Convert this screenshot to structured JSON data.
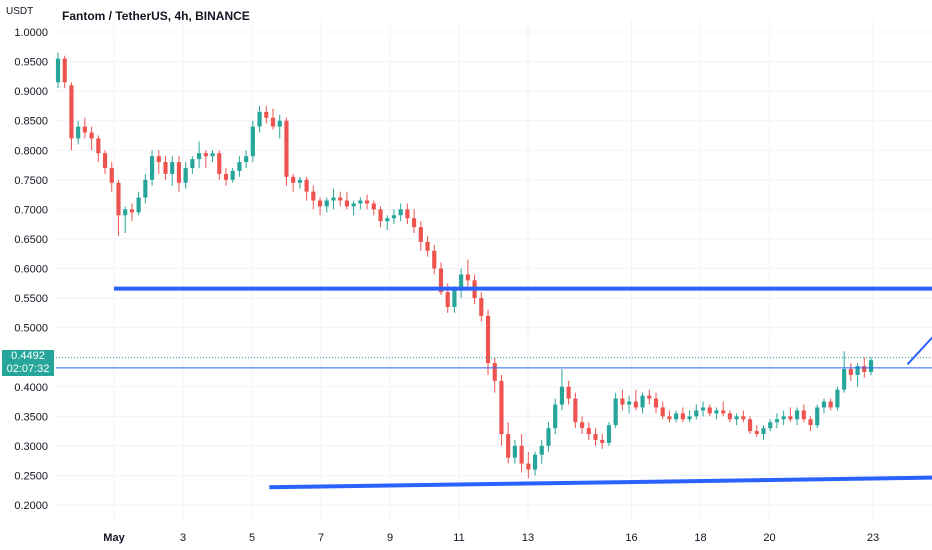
{
  "header": {
    "title": "Fantom / TetherUS, 4h, BINANCE",
    "unit": "USDT"
  },
  "colors": {
    "up": "#26a69a",
    "down": "#ef5350",
    "line": "#2962ff",
    "grid": "#f0f3fa",
    "axis_text": "#131722"
  },
  "price_badge": {
    "price": "0.4492",
    "timer": "02:07:32"
  },
  "chart_data": {
    "type": "candlestick",
    "ylim": [
      0.18,
      1.02
    ],
    "y_ticks": [
      "1.0000",
      "0.9500",
      "0.9000",
      "0.8500",
      "0.8000",
      "0.7500",
      "0.7000",
      "0.6500",
      "0.6000",
      "0.5500",
      "0.5000",
      "0.4500",
      "0.4000",
      "0.3500",
      "0.3000",
      "0.2500",
      "0.2000"
    ],
    "x_ticks": [
      {
        "label": "May",
        "day": 1,
        "bold": true
      },
      {
        "label": "3",
        "day": 3
      },
      {
        "label": "5",
        "day": 5
      },
      {
        "label": "7",
        "day": 7
      },
      {
        "label": "9",
        "day": 9
      },
      {
        "label": "11",
        "day": 11
      },
      {
        "label": "13",
        "day": 13
      },
      {
        "label": "16",
        "day": 16
      },
      {
        "label": "18",
        "day": 18
      },
      {
        "label": "20",
        "day": 20
      },
      {
        "label": "23",
        "day": 23
      }
    ],
    "candles": [
      [
        0.915,
        0.965,
        0.905,
        0.955
      ],
      [
        0.955,
        0.96,
        0.905,
        0.915
      ],
      [
        0.91,
        0.915,
        0.8,
        0.82
      ],
      [
        0.82,
        0.85,
        0.81,
        0.84
      ],
      [
        0.84,
        0.855,
        0.82,
        0.83
      ],
      [
        0.83,
        0.84,
        0.8,
        0.82
      ],
      [
        0.82,
        0.825,
        0.78,
        0.795
      ],
      [
        0.795,
        0.8,
        0.76,
        0.77
      ],
      [
        0.77,
        0.78,
        0.73,
        0.745
      ],
      [
        0.745,
        0.75,
        0.655,
        0.69
      ],
      [
        0.69,
        0.705,
        0.66,
        0.7
      ],
      [
        0.7,
        0.71,
        0.68,
        0.695
      ],
      [
        0.695,
        0.73,
        0.69,
        0.72
      ],
      [
        0.72,
        0.76,
        0.71,
        0.75
      ],
      [
        0.75,
        0.8,
        0.74,
        0.79
      ],
      [
        0.79,
        0.8,
        0.76,
        0.78
      ],
      [
        0.78,
        0.79,
        0.75,
        0.76
      ],
      [
        0.76,
        0.79,
        0.74,
        0.78
      ],
      [
        0.78,
        0.79,
        0.73,
        0.745
      ],
      [
        0.745,
        0.78,
        0.735,
        0.77
      ],
      [
        0.77,
        0.79,
        0.76,
        0.785
      ],
      [
        0.785,
        0.815,
        0.77,
        0.795
      ],
      [
        0.795,
        0.8,
        0.77,
        0.79
      ],
      [
        0.79,
        0.8,
        0.78,
        0.795
      ],
      [
        0.795,
        0.8,
        0.75,
        0.76
      ],
      [
        0.76,
        0.77,
        0.74,
        0.75
      ],
      [
        0.75,
        0.77,
        0.745,
        0.765
      ],
      [
        0.765,
        0.79,
        0.755,
        0.78
      ],
      [
        0.78,
        0.8,
        0.77,
        0.79
      ],
      [
        0.79,
        0.85,
        0.78,
        0.84
      ],
      [
        0.84,
        0.875,
        0.83,
        0.865
      ],
      [
        0.865,
        0.875,
        0.845,
        0.855
      ],
      [
        0.855,
        0.87,
        0.835,
        0.84
      ],
      [
        0.84,
        0.86,
        0.82,
        0.85
      ],
      [
        0.85,
        0.855,
        0.74,
        0.755
      ],
      [
        0.755,
        0.76,
        0.73,
        0.745
      ],
      [
        0.745,
        0.755,
        0.735,
        0.75
      ],
      [
        0.75,
        0.755,
        0.715,
        0.73
      ],
      [
        0.73,
        0.74,
        0.7,
        0.715
      ],
      [
        0.715,
        0.72,
        0.69,
        0.705
      ],
      [
        0.705,
        0.72,
        0.695,
        0.715
      ],
      [
        0.715,
        0.735,
        0.7,
        0.72
      ],
      [
        0.72,
        0.73,
        0.705,
        0.715
      ],
      [
        0.715,
        0.73,
        0.7,
        0.705
      ],
      [
        0.705,
        0.715,
        0.69,
        0.71
      ],
      [
        0.71,
        0.72,
        0.7,
        0.715
      ],
      [
        0.715,
        0.725,
        0.7,
        0.71
      ],
      [
        0.71,
        0.715,
        0.69,
        0.7
      ],
      [
        0.7,
        0.705,
        0.67,
        0.68
      ],
      [
        0.68,
        0.69,
        0.665,
        0.685
      ],
      [
        0.685,
        0.7,
        0.675,
        0.69
      ],
      [
        0.69,
        0.71,
        0.68,
        0.7
      ],
      [
        0.7,
        0.71,
        0.675,
        0.685
      ],
      [
        0.685,
        0.7,
        0.66,
        0.67
      ],
      [
        0.67,
        0.68,
        0.63,
        0.645
      ],
      [
        0.645,
        0.655,
        0.62,
        0.63
      ],
      [
        0.63,
        0.64,
        0.59,
        0.6
      ],
      [
        0.6,
        0.61,
        0.555,
        0.56
      ],
      [
        0.56,
        0.575,
        0.525,
        0.535
      ],
      [
        0.535,
        0.57,
        0.525,
        0.565
      ],
      [
        0.565,
        0.6,
        0.55,
        0.59
      ],
      [
        0.59,
        0.615,
        0.57,
        0.58
      ],
      [
        0.58,
        0.59,
        0.54,
        0.55
      ],
      [
        0.55,
        0.56,
        0.51,
        0.52
      ],
      [
        0.52,
        0.53,
        0.42,
        0.44
      ],
      [
        0.44,
        0.45,
        0.39,
        0.41
      ],
      [
        0.41,
        0.42,
        0.3,
        0.32
      ],
      [
        0.32,
        0.34,
        0.27,
        0.28
      ],
      [
        0.28,
        0.31,
        0.27,
        0.3
      ],
      [
        0.3,
        0.32,
        0.255,
        0.27
      ],
      [
        0.27,
        0.29,
        0.245,
        0.26
      ],
      [
        0.26,
        0.29,
        0.25,
        0.285
      ],
      [
        0.285,
        0.31,
        0.27,
        0.3
      ],
      [
        0.3,
        0.34,
        0.29,
        0.33
      ],
      [
        0.33,
        0.38,
        0.32,
        0.37
      ],
      [
        0.37,
        0.43,
        0.36,
        0.4
      ],
      [
        0.4,
        0.41,
        0.37,
        0.38
      ],
      [
        0.38,
        0.39,
        0.33,
        0.34
      ],
      [
        0.34,
        0.35,
        0.32,
        0.33
      ],
      [
        0.33,
        0.34,
        0.31,
        0.32
      ],
      [
        0.32,
        0.33,
        0.3,
        0.31
      ],
      [
        0.31,
        0.32,
        0.295,
        0.305
      ],
      [
        0.305,
        0.34,
        0.3,
        0.335
      ],
      [
        0.335,
        0.39,
        0.33,
        0.38
      ],
      [
        0.38,
        0.395,
        0.36,
        0.37
      ],
      [
        0.37,
        0.385,
        0.355,
        0.375
      ],
      [
        0.375,
        0.395,
        0.36,
        0.365
      ],
      [
        0.365,
        0.39,
        0.355,
        0.385
      ],
      [
        0.385,
        0.395,
        0.37,
        0.38
      ],
      [
        0.38,
        0.39,
        0.355,
        0.365
      ],
      [
        0.365,
        0.375,
        0.345,
        0.35
      ],
      [
        0.35,
        0.36,
        0.34,
        0.345
      ],
      [
        0.345,
        0.36,
        0.34,
        0.355
      ],
      [
        0.355,
        0.365,
        0.34,
        0.345
      ],
      [
        0.345,
        0.36,
        0.34,
        0.35
      ],
      [
        0.35,
        0.37,
        0.345,
        0.36
      ],
      [
        0.36,
        0.375,
        0.35,
        0.365
      ],
      [
        0.365,
        0.37,
        0.35,
        0.355
      ],
      [
        0.355,
        0.365,
        0.345,
        0.36
      ],
      [
        0.36,
        0.375,
        0.35,
        0.355
      ],
      [
        0.355,
        0.36,
        0.34,
        0.345
      ],
      [
        0.345,
        0.355,
        0.335,
        0.35
      ],
      [
        0.35,
        0.36,
        0.34,
        0.345
      ],
      [
        0.345,
        0.35,
        0.32,
        0.325
      ],
      [
        0.325,
        0.335,
        0.315,
        0.32
      ],
      [
        0.32,
        0.335,
        0.31,
        0.33
      ],
      [
        0.33,
        0.345,
        0.325,
        0.34
      ],
      [
        0.34,
        0.355,
        0.33,
        0.345
      ],
      [
        0.345,
        0.36,
        0.335,
        0.35
      ],
      [
        0.35,
        0.365,
        0.34,
        0.345
      ],
      [
        0.345,
        0.365,
        0.335,
        0.36
      ],
      [
        0.36,
        0.37,
        0.34,
        0.345
      ],
      [
        0.345,
        0.35,
        0.325,
        0.335
      ],
      [
        0.335,
        0.37,
        0.33,
        0.365
      ],
      [
        0.365,
        0.38,
        0.355,
        0.375
      ],
      [
        0.375,
        0.38,
        0.36,
        0.365
      ],
      [
        0.365,
        0.4,
        0.36,
        0.395
      ],
      [
        0.395,
        0.46,
        0.39,
        0.43
      ],
      [
        0.43,
        0.44,
        0.41,
        0.42
      ],
      [
        0.42,
        0.44,
        0.4,
        0.435
      ],
      [
        0.435,
        0.45,
        0.415,
        0.425
      ],
      [
        0.425,
        0.45,
        0.42,
        0.445
      ]
    ],
    "support_line": {
      "from": [
        4.5,
        0.23
      ],
      "to": [
        24.6,
        0.247
      ]
    },
    "resistance_line": {
      "from": [
        0.0,
        0.566
      ],
      "to": [
        24.6,
        0.566
      ]
    },
    "current_price_line": 0.449,
    "last_price_line": 0.432,
    "arrow": {
      "from": [
        23.0,
        0.438
      ],
      "to": [
        24.3,
        0.52
      ]
    }
  }
}
